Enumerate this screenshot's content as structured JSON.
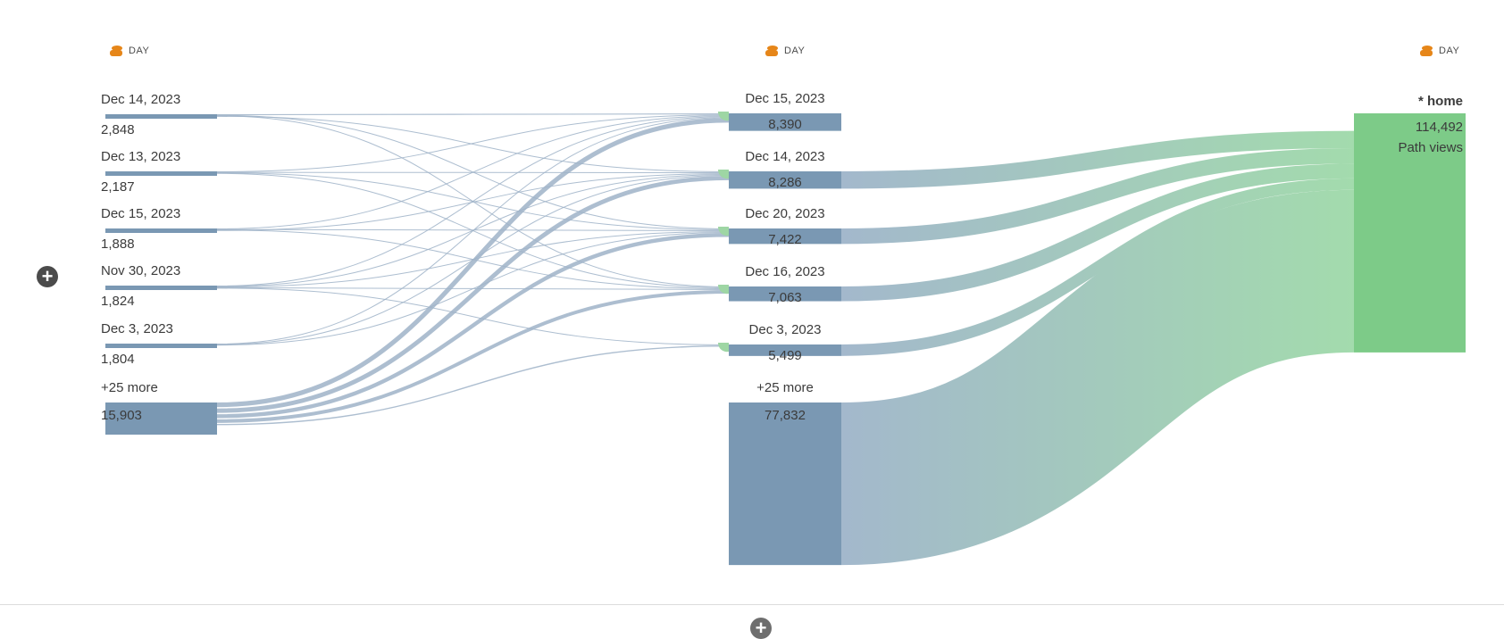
{
  "columns": [
    {
      "header": "DAY",
      "icon": "dimension-icon"
    },
    {
      "header": "DAY",
      "icon": "dimension-icon"
    },
    {
      "header": "DAY",
      "icon": "dimension-icon"
    }
  ],
  "colors": {
    "node": "#7a98b3",
    "link": "#9fb3c8",
    "target": "#7dcb88",
    "icon": "#e68619"
  },
  "chart_data": {
    "type": "sankey",
    "metric": "Path views",
    "left_nodes": [
      {
        "label": "Dec 14, 2023",
        "value": 2848,
        "display": "2,848"
      },
      {
        "label": "Dec 13, 2023",
        "value": 2187,
        "display": "2,187"
      },
      {
        "label": "Dec 15, 2023",
        "value": 1888,
        "display": "1,888"
      },
      {
        "label": "Nov 30, 2023",
        "value": 1824,
        "display": "1,824"
      },
      {
        "label": "Dec 3, 2023",
        "value": 1804,
        "display": "1,804"
      },
      {
        "label": "+25 more",
        "value": 15903,
        "display": "15,903"
      }
    ],
    "middle_nodes": [
      {
        "label": "Dec 15, 2023",
        "value": 8390,
        "display": "8,390"
      },
      {
        "label": "Dec 14, 2023",
        "value": 8286,
        "display": "8,286"
      },
      {
        "label": "Dec 20, 2023",
        "value": 7422,
        "display": "7,422"
      },
      {
        "label": "Dec 16, 2023",
        "value": 7063,
        "display": "7,063"
      },
      {
        "label": "Dec 3, 2023",
        "value": 5499,
        "display": "5,499"
      },
      {
        "label": "+25 more",
        "value": 77832,
        "display": "77,832"
      }
    ],
    "right_node": {
      "label": "* home",
      "value": 114492,
      "display": "114,492",
      "sublabel": "Path views"
    },
    "left_links": [
      [
        0,
        0,
        500
      ],
      [
        0,
        2,
        350
      ],
      [
        0,
        3,
        300
      ],
      [
        0,
        1,
        250
      ],
      [
        1,
        0,
        250
      ],
      [
        1,
        1,
        400
      ],
      [
        1,
        2,
        250
      ],
      [
        1,
        3,
        200
      ],
      [
        2,
        0,
        250
      ],
      [
        2,
        2,
        300
      ],
      [
        2,
        3,
        350
      ],
      [
        2,
        1,
        200
      ],
      [
        3,
        0,
        200
      ],
      [
        3,
        1,
        200
      ],
      [
        3,
        2,
        250
      ],
      [
        3,
        3,
        200
      ],
      [
        3,
        4,
        250
      ],
      [
        4,
        0,
        200
      ],
      [
        4,
        1,
        250
      ],
      [
        4,
        2,
        200
      ],
      [
        5,
        0,
        2200
      ],
      [
        5,
        1,
        2100
      ],
      [
        5,
        2,
        1900
      ],
      [
        5,
        3,
        1700
      ],
      [
        5,
        4,
        600
      ]
    ]
  }
}
